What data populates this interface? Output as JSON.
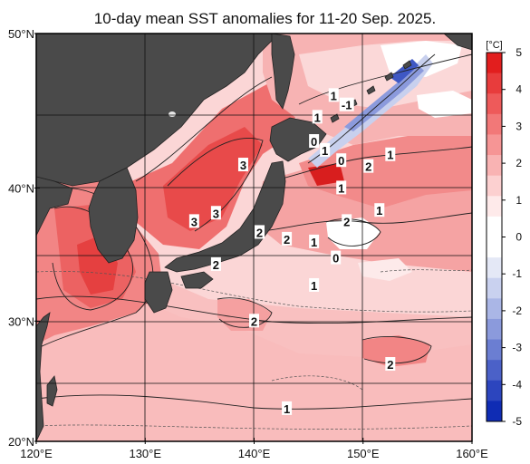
{
  "title": "10-day mean SST anomalies for 11-20 Sep. 2025.",
  "map": {
    "lat_labels": [
      {
        "value": 50,
        "text": "50°N"
      },
      {
        "value": 40,
        "text": "40°N"
      },
      {
        "value": 30,
        "text": "30°N"
      },
      {
        "value": 20,
        "text": "20°N"
      }
    ],
    "lon_labels": [
      {
        "value": 120,
        "text": "120°E"
      },
      {
        "value": 130,
        "text": "130°E"
      },
      {
        "value": 140,
        "text": "140°E"
      },
      {
        "value": 150,
        "text": "150°E"
      },
      {
        "value": 160,
        "text": "160°E"
      }
    ],
    "extent": {
      "lon": [
        120,
        160
      ],
      "lat": [
        20,
        50
      ]
    },
    "land_color": "#4a4a4a",
    "contour_labels": [
      {
        "text": "1",
        "lon": 147.3,
        "lat": 46.2
      },
      {
        "text": "-1",
        "lon": 148.5,
        "lat": 45.6
      },
      {
        "text": "1",
        "lon": 145.8,
        "lat": 44.8
      },
      {
        "text": "0",
        "lon": 145.5,
        "lat": 43.2
      },
      {
        "text": "1",
        "lon": 146.5,
        "lat": 42.6
      },
      {
        "text": "0",
        "lon": 148.0,
        "lat": 41.9
      },
      {
        "text": "1",
        "lon": 152.5,
        "lat": 42.3
      },
      {
        "text": "2",
        "lon": 150.5,
        "lat": 41.5
      },
      {
        "text": "3",
        "lon": 139.0,
        "lat": 41.6
      },
      {
        "text": "1",
        "lon": 148.0,
        "lat": 40.0
      },
      {
        "text": "3",
        "lon": 136.5,
        "lat": 38.2
      },
      {
        "text": "3",
        "lon": 134.5,
        "lat": 37.6
      },
      {
        "text": "1",
        "lon": 151.5,
        "lat": 38.4
      },
      {
        "text": "2",
        "lon": 148.5,
        "lat": 37.6
      },
      {
        "text": "2",
        "lon": 140.5,
        "lat": 36.8
      },
      {
        "text": "2",
        "lon": 143.0,
        "lat": 36.3
      },
      {
        "text": "1",
        "lon": 145.5,
        "lat": 36.1
      },
      {
        "text": "0",
        "lon": 147.5,
        "lat": 34.9
      },
      {
        "text": "2",
        "lon": 136.5,
        "lat": 34.4
      },
      {
        "text": "1",
        "lon": 145.5,
        "lat": 32.8
      },
      {
        "text": "2",
        "lon": 140.0,
        "lat": 30.0
      },
      {
        "text": "2",
        "lon": 152.5,
        "lat": 26.5
      },
      {
        "text": "1",
        "lon": 143.0,
        "lat": 22.8
      }
    ]
  },
  "colorbar": {
    "unit": "[°C]",
    "ticks": [
      "5",
      "4",
      "3",
      "2",
      "1",
      "0",
      "-1",
      "-2",
      "-3",
      "-4",
      "-5"
    ],
    "colors": [
      "#e21e1e",
      "#e83c3c",
      "#ee5a5a",
      "#f27878",
      "#f69595",
      "#f9b3b3",
      "#fcd0d0",
      "#feeaea",
      "#ffffff",
      "#ffffff",
      "#e4e8f6",
      "#c9d1ef",
      "#aab6e6",
      "#8b9adc",
      "#6b7ed2",
      "#4b61c8",
      "#2c45be",
      "#0f2cb4"
    ]
  }
}
